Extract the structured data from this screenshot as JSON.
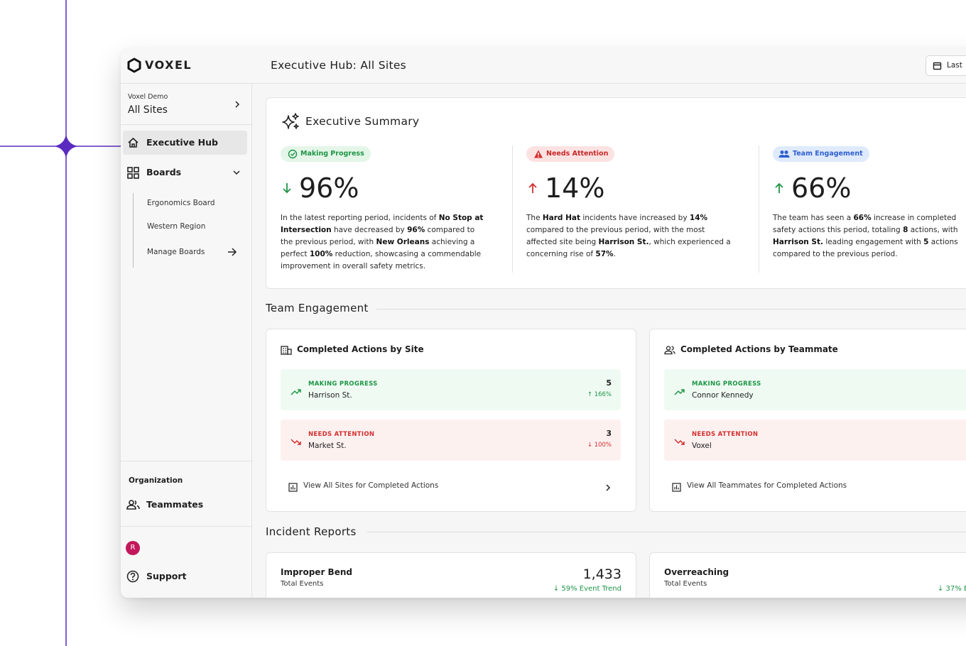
{
  "brand": "VOXEL",
  "header": {
    "title": "Executive Hub: All Sites",
    "date_button": "Last"
  },
  "sidebar": {
    "org_small": "Voxel Demo",
    "org": "All Sites",
    "executive_hub": "Executive Hub",
    "boards": {
      "label": "Boards",
      "items": [
        "Ergonomics Board",
        "Western Region",
        "Manage Boards"
      ]
    },
    "organization": "Organization",
    "teammates": "Teammates",
    "avatar": "R",
    "support": "Support"
  },
  "summary": {
    "title": "Executive Summary",
    "cards": [
      {
        "badge": "Making Progress",
        "value": "96%",
        "text": [
          {
            "text": "In the latest reporting period, incidents of "
          },
          {
            "text": "No Stop at Intersection",
            "bold": true
          },
          {
            "text": " have decreased by "
          },
          {
            "text": "96%",
            "bold": true
          },
          {
            "text": " compared to the previous period, with "
          },
          {
            "text": "New Orleans",
            "bold": true
          },
          {
            "text": " achieving a perfect "
          },
          {
            "text": "100%",
            "bold": true
          },
          {
            "text": " reduction, showcasing a commendable improvement in overall safety metrics."
          }
        ]
      },
      {
        "badge": "Needs Attention",
        "value": "14%",
        "text": [
          {
            "text": "The "
          },
          {
            "text": "Hard Hat",
            "bold": true
          },
          {
            "text": " incidents have increased by "
          },
          {
            "text": "14%",
            "bold": true
          },
          {
            "text": " compared to the previous period, with the most affected site being "
          },
          {
            "text": "Harrison St.",
            "bold": true
          },
          {
            "text": ", which experienced a concerning rise of "
          },
          {
            "text": "57%",
            "bold": true
          },
          {
            "text": "."
          }
        ]
      },
      {
        "badge": "Team Engagement",
        "value": "66%",
        "text": [
          {
            "text": "The team has seen a "
          },
          {
            "text": "66%",
            "bold": true
          },
          {
            "text": " increase in completed safety actions this period, totaling "
          },
          {
            "text": "8",
            "bold": true
          },
          {
            "text": " actions, with "
          },
          {
            "text": "Harrison St.",
            "bold": true
          },
          {
            "text": " leading engagement with "
          },
          {
            "text": "5",
            "bold": true
          },
          {
            "text": " actions compared to the previous period."
          }
        ]
      }
    ]
  },
  "team_engagement": {
    "title": "Team Engagement",
    "panels": [
      {
        "title": "Completed Actions by Site",
        "rows": [
          {
            "status": "MAKING PROGRESS",
            "name": "Harrison St.",
            "count": "5",
            "trend": "↑ 166%"
          },
          {
            "status": "NEEDS ATTENTION",
            "name": "Market St.",
            "count": "3",
            "trend": "↓ 100%"
          }
        ],
        "link": "View All Sites for Completed Actions"
      },
      {
        "title": "Completed Actions by Teammate",
        "rows": [
          {
            "status": "MAKING PROGRESS",
            "name": "Connor Kennedy"
          },
          {
            "status": "NEEDS ATTENTION",
            "name": "Voxel"
          }
        ],
        "link": "View All Teammates for Completed Actions"
      }
    ]
  },
  "incident_reports": {
    "title": "Incident Reports",
    "cards": [
      {
        "title": "Improper Bend",
        "subtitle": "Total Events",
        "count": "1,433",
        "trend": "↓ 59% Event Trend"
      },
      {
        "title": "Overreaching",
        "subtitle": "Total Events",
        "trend": "↓ 37% E"
      }
    ]
  }
}
